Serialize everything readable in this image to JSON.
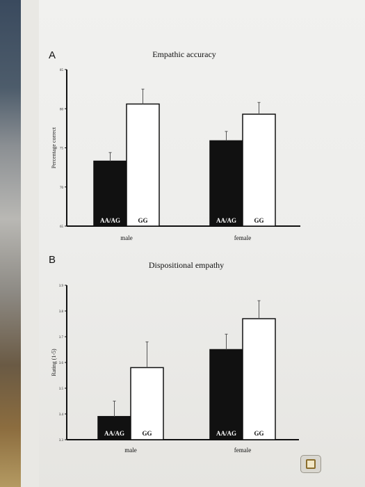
{
  "chart_data": [
    {
      "panel": "A",
      "type": "bar",
      "title": "Empathic accuracy",
      "ylabel": "Percentage correct",
      "ylim": [
        65,
        85
      ],
      "yticks": [
        "65",
        "70",
        "75",
        "80",
        "85"
      ],
      "groups": [
        {
          "name": "male",
          "bars": [
            {
              "label": "AA/AG",
              "value": 73.3,
              "error": 1.1,
              "fill": "#111111"
            },
            {
              "label": "GG",
              "value": 80.6,
              "error": 1.9,
              "fill": "#ffffff"
            }
          ]
        },
        {
          "name": "female",
          "bars": [
            {
              "label": "AA/AG",
              "value": 75.9,
              "error": 1.2,
              "fill": "#111111"
            },
            {
              "label": "GG",
              "value": 79.3,
              "error": 1.5,
              "fill": "#ffffff"
            }
          ]
        }
      ]
    },
    {
      "panel": "B",
      "type": "bar",
      "title": "Dispositional empathy",
      "ylabel": "Rating (1-5)",
      "ylim": [
        3.3,
        3.9
      ],
      "yticks": [
        "3.3",
        "3.4",
        "3.5",
        "3.6",
        "3.7",
        "3.8",
        "3.9"
      ],
      "groups": [
        {
          "name": "male",
          "bars": [
            {
              "label": "AA/AG",
              "value": 3.39,
              "error": 0.06,
              "fill": "#111111"
            },
            {
              "label": "GG",
              "value": 3.58,
              "error": 0.1,
              "fill": "#ffffff"
            }
          ]
        },
        {
          "name": "female",
          "bars": [
            {
              "label": "AA/AG",
              "value": 3.65,
              "error": 0.06,
              "fill": "#111111"
            },
            {
              "label": "GG",
              "value": 3.77,
              "error": 0.07,
              "fill": "#ffffff"
            }
          ]
        }
      ]
    }
  ],
  "colors": {
    "axis": "#111111",
    "bar_dark": "#111111",
    "bar_light": "#ffffff"
  },
  "icons": {
    "corner": "document-icon"
  }
}
